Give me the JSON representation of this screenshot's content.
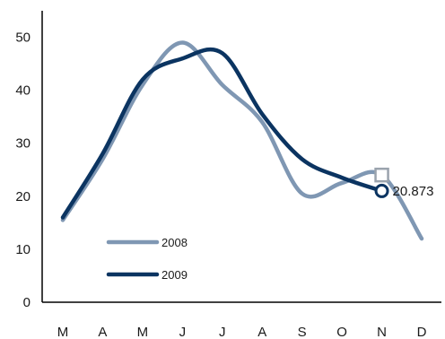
{
  "chart_data": {
    "type": "line",
    "categories": [
      "M",
      "A",
      "M",
      "J",
      "J",
      "A",
      "S",
      "O",
      "N",
      "D"
    ],
    "ylim": [
      0,
      55
    ],
    "yticks": [
      0,
      10,
      20,
      30,
      40,
      50
    ],
    "grid": false,
    "legend_placement": "bottom-left",
    "series": [
      {
        "name": "2008",
        "color": "#7f97b3",
        "marker": "square",
        "values": [
          15.5,
          27,
          41,
          49,
          41,
          34,
          20.5,
          22.5,
          24,
          12
        ]
      },
      {
        "name": "2009",
        "color": "#0b3461",
        "marker": "circle",
        "values": [
          16,
          28,
          42,
          46,
          47,
          35.5,
          27,
          23.5,
          21,
          null
        ]
      }
    ],
    "annotation": {
      "series": "2009",
      "category_index": 8,
      "text": "20.873"
    }
  }
}
